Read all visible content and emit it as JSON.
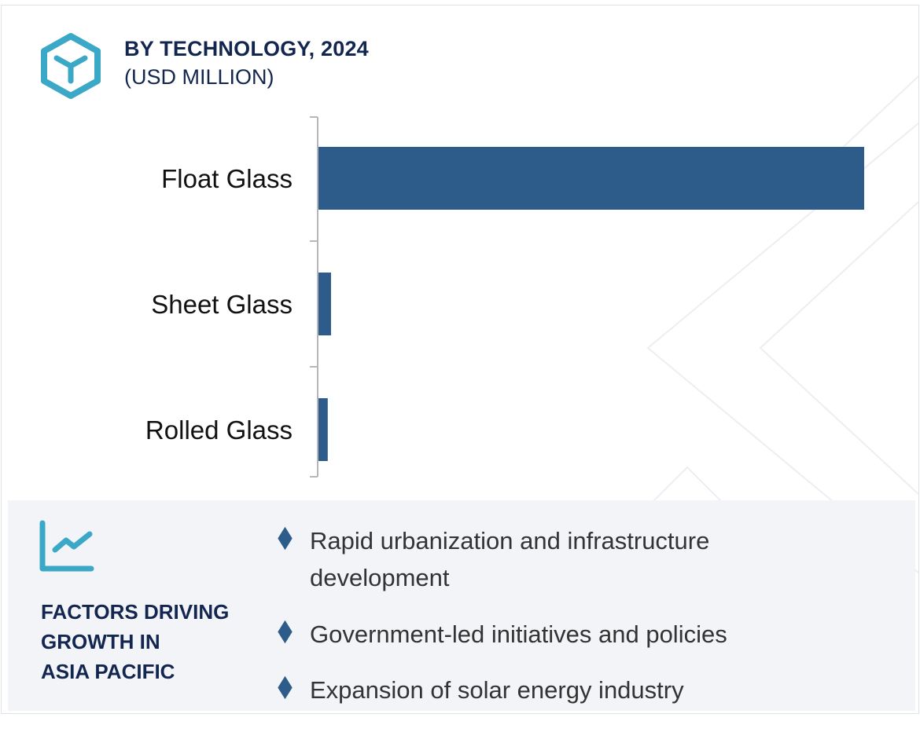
{
  "header": {
    "title": "BY TECHNOLOGY, 2024",
    "subtitle": "(USD MILLION)",
    "icon": "hexagon-y-icon"
  },
  "chart_data": {
    "type": "bar",
    "orientation": "horizontal",
    "title": "BY TECHNOLOGY, 2024",
    "subtitle": "(USD MILLION)",
    "categories": [
      "Float Glass",
      "Sheet Glass",
      "Rolled Glass"
    ],
    "values": [
      100,
      2.3,
      1.7
    ],
    "value_note": "relative (no axis values shown)",
    "xlim": [
      0,
      100
    ],
    "grid": false,
    "bar_color": "#2d5c8a"
  },
  "factors": {
    "icon": "line-chart-icon",
    "title_lines": [
      "FACTORS DRIVING",
      "GROWTH IN",
      "ASIA PACIFIC"
    ],
    "items": [
      "Rapid urbanization and infrastructure development",
      "Government-led initiatives and policies",
      "Expansion of solar energy industry"
    ]
  },
  "colors": {
    "accent": "#3aa8c6",
    "navy": "#13264f",
    "bar": "#2d5c8a",
    "panel": "#f3f4f8"
  }
}
